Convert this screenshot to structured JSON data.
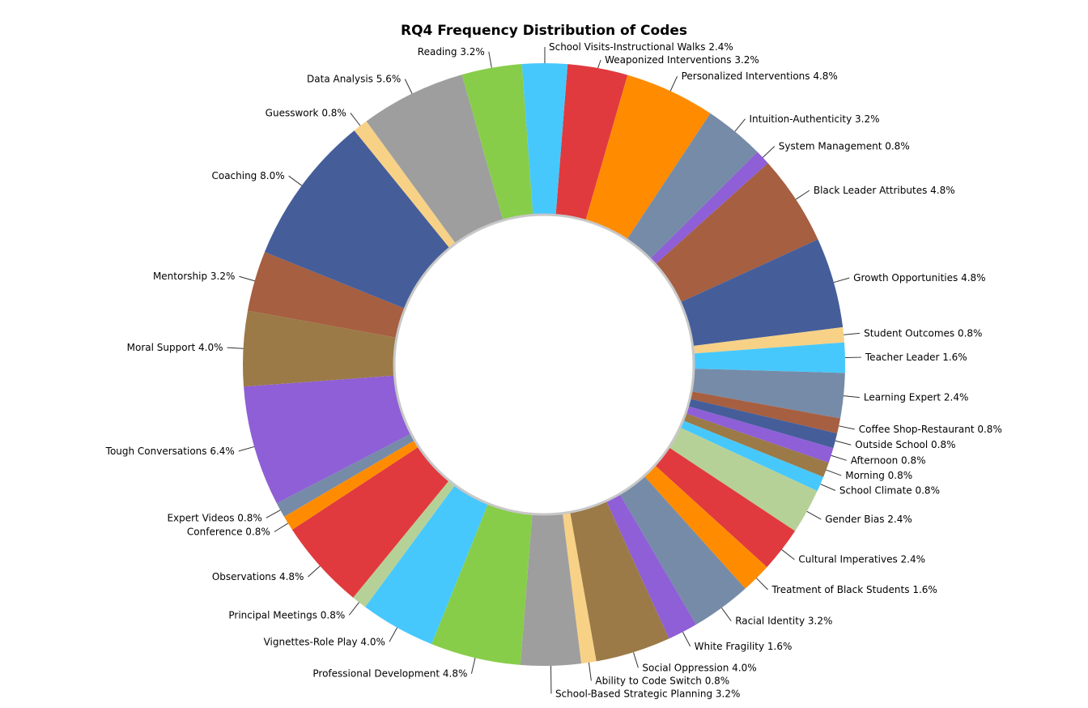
{
  "chart_data": {
    "type": "pie",
    "title": "RQ4 Frequency Distribution of Codes",
    "unit": "%",
    "slices": [
      {
        "label": "Weaponized Interventions",
        "value": 3.2,
        "display": "3.2%",
        "color": "#E03A3E"
      },
      {
        "label": "Personalized Interventions",
        "value": 4.8,
        "display": "4.8%",
        "color": "#FF8C00"
      },
      {
        "label": "Intuition-Authenticity",
        "value": 3.2,
        "display": "3.2%",
        "color": "#768BA8"
      },
      {
        "label": "System Management",
        "value": 0.8,
        "display": "0.8%",
        "color": "#8E5FD6"
      },
      {
        "label": "Black Leader Attributes",
        "value": 4.8,
        "display": "4.8%",
        "color": "#A65F40"
      },
      {
        "label": "Growth Opportunities",
        "value": 4.8,
        "display": "4.8%",
        "color": "#455E9A"
      },
      {
        "label": "Student Outcomes",
        "value": 0.8,
        "display": "0.8%",
        "color": "#F7D186"
      },
      {
        "label": "Teacher Leader",
        "value": 1.6,
        "display": "1.6%",
        "color": "#47C8FC"
      },
      {
        "label": "Learning Expert",
        "value": 2.4,
        "display": "2.4%",
        "color": "#768BA8"
      },
      {
        "label": "Coffee Shop-Restaurant",
        "value": 0.8,
        "display": "0.8%",
        "color": "#A65F40"
      },
      {
        "label": "Outside School",
        "value": 0.8,
        "display": "0.8%",
        "color": "#455E9A"
      },
      {
        "label": "Afternoon",
        "value": 0.8,
        "display": "0.8%",
        "color": "#8E5FD6"
      },
      {
        "label": "Morning",
        "value": 0.8,
        "display": "0.8%",
        "color": "#9B7A47"
      },
      {
        "label": "School Climate",
        "value": 0.8,
        "display": "0.8%",
        "color": "#47C8FC"
      },
      {
        "label": "Gender Bias",
        "value": 2.4,
        "display": "2.4%",
        "color": "#B6D197"
      },
      {
        "label": "Cultural Imperatives",
        "value": 2.4,
        "display": "2.4%",
        "color": "#E03A3E"
      },
      {
        "label": "Treatment of Black Students",
        "value": 1.6,
        "display": "1.6%",
        "color": "#FF8C00"
      },
      {
        "label": "Racial Identity",
        "value": 3.2,
        "display": "3.2%",
        "color": "#768BA8"
      },
      {
        "label": "White Fragility",
        "value": 1.6,
        "display": "1.6%",
        "color": "#8E5FD6"
      },
      {
        "label": "Social Oppression",
        "value": 4.0,
        "display": "4.0%",
        "color": "#9B7A47"
      },
      {
        "label": "Ability to Code Switch",
        "value": 0.8,
        "display": "0.8%",
        "color": "#F7D186"
      },
      {
        "label": "School-Based Strategic Planning",
        "value": 3.2,
        "display": "3.2%",
        "color": "#9E9E9E"
      },
      {
        "label": "Professional Development",
        "value": 4.8,
        "display": "4.8%",
        "color": "#87CD4A"
      },
      {
        "label": "Vignettes-Role Play",
        "value": 4.0,
        "display": "4.0%",
        "color": "#47C8FC"
      },
      {
        "label": "Principal Meetings",
        "value": 0.8,
        "display": "0.8%",
        "color": "#B6D197"
      },
      {
        "label": "Observations",
        "value": 4.8,
        "display": "4.8%",
        "color": "#E03A3E"
      },
      {
        "label": "Conference",
        "value": 0.8,
        "display": "0.8%",
        "color": "#FF8C00"
      },
      {
        "label": "Expert Videos",
        "value": 0.8,
        "display": "0.8%",
        "color": "#768BA8"
      },
      {
        "label": "Tough Conversations",
        "value": 6.4,
        "display": "6.4%",
        "color": "#8E5FD6"
      },
      {
        "label": "Moral Support",
        "value": 4.0,
        "display": "4.0%",
        "color": "#9B7A47"
      },
      {
        "label": "Mentorship",
        "value": 3.2,
        "display": "3.2%",
        "color": "#A65F40"
      },
      {
        "label": "Coaching",
        "value": 8.0,
        "display": "8.0%",
        "color": "#455E9A"
      },
      {
        "label": "Guesswork",
        "value": 0.8,
        "display": "0.8%",
        "color": "#F7D186"
      },
      {
        "label": "Data Analysis",
        "value": 5.6,
        "display": "5.6%",
        "color": "#9E9E9E"
      },
      {
        "label": "Reading",
        "value": 3.2,
        "display": "3.2%",
        "color": "#87CD4A"
      },
      {
        "label": "School Visits-Instructional Walks",
        "value": 2.4,
        "display": "2.4%",
        "color": "#47C8FC"
      }
    ],
    "legend": "none",
    "hole": "donut"
  }
}
